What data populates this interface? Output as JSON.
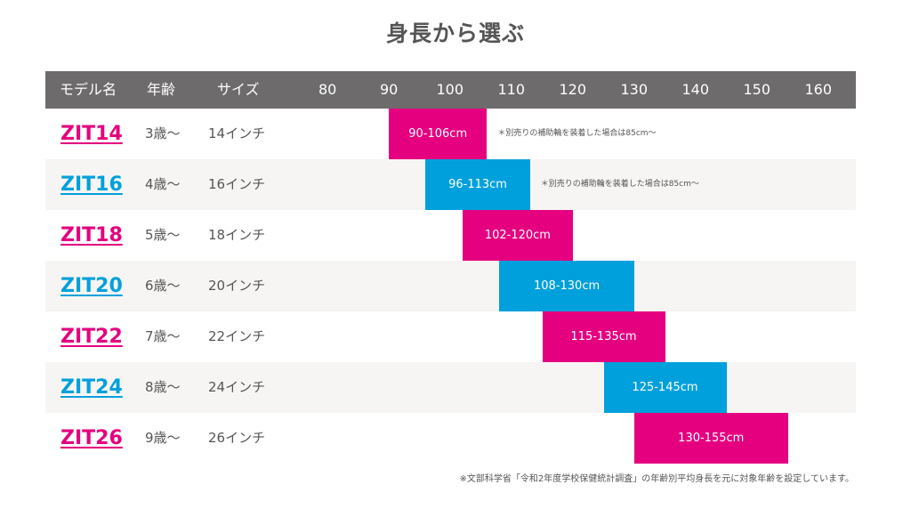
{
  "title": "身長から選ぶ",
  "colors": {
    "pink": "#e4007f",
    "blue": "#00a0dc",
    "header_bg": "#6d6b6b"
  },
  "header": {
    "model": "モデル名",
    "age": "年齢",
    "size": "サイズ",
    "ticks": [
      "80",
      "90",
      "100",
      "110",
      "120",
      "130",
      "140",
      "150",
      "160"
    ]
  },
  "chart_data": {
    "type": "bar",
    "orientation": "horizontal-range",
    "xlim": [
      80,
      160
    ],
    "x_ticks": [
      80,
      90,
      100,
      110,
      120,
      130,
      140,
      150,
      160
    ],
    "rows": [
      {
        "model": "ZIT14",
        "age": "3歳〜",
        "size": "14インチ",
        "min": 90,
        "max": 106,
        "label": "90-106cm",
        "color": "pink",
        "note": "＊別売りの補助輪を装着した場合は85cm〜"
      },
      {
        "model": "ZIT16",
        "age": "4歳〜",
        "size": "16インチ",
        "min": 96,
        "max": 113,
        "label": "96-113cm",
        "color": "blue",
        "note": "＊別売りの補助輪を装着した場合は85cm〜"
      },
      {
        "model": "ZIT18",
        "age": "5歳〜",
        "size": "18インチ",
        "min": 102,
        "max": 120,
        "label": "102-120cm",
        "color": "pink"
      },
      {
        "model": "ZIT20",
        "age": "6歳〜",
        "size": "20インチ",
        "min": 108,
        "max": 130,
        "label": "108-130cm",
        "color": "blue"
      },
      {
        "model": "ZIT22",
        "age": "7歳〜",
        "size": "22インチ",
        "min": 115,
        "max": 135,
        "label": "115-135cm",
        "color": "pink"
      },
      {
        "model": "ZIT24",
        "age": "8歳〜",
        "size": "24インチ",
        "min": 125,
        "max": 145,
        "label": "125-145cm",
        "color": "blue"
      },
      {
        "model": "ZIT26",
        "age": "9歳〜",
        "size": "26インチ",
        "min": 130,
        "max": 155,
        "label": "130-155cm",
        "color": "pink"
      }
    ]
  },
  "footnote": "※文部科学省「令和2年度学校保健統計調査」の年齢別平均身長を元に対象年齢を設定しています。"
}
